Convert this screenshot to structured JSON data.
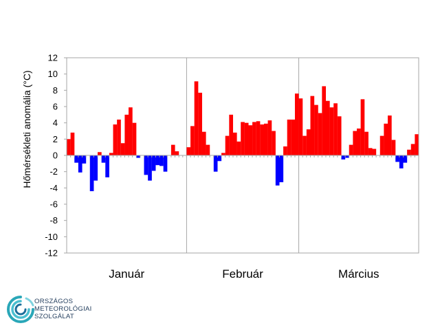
{
  "chart_data": {
    "type": "bar",
    "ylabel": "Hőmérsékleti anomália (°C)",
    "ylim": [
      -12,
      12
    ],
    "yticks": [
      "12",
      "10",
      "8",
      "6",
      "4",
      "2",
      "0",
      "-2",
      "-4",
      "-6",
      "-8",
      "-10",
      "-12"
    ],
    "months": [
      "Január",
      "Február",
      "Március"
    ],
    "month_days": [
      31,
      29,
      31
    ],
    "colors": {
      "positive": "#ff0000",
      "negative": "#0000ff"
    },
    "values": [
      2.0,
      2.8,
      -0.9,
      -2.1,
      -1.0,
      0.0,
      -4.4,
      -3.1,
      0.4,
      -0.9,
      -2.7,
      0.3,
      3.8,
      4.4,
      1.5,
      5.0,
      5.9,
      4.0,
      -0.3,
      0.0,
      -2.4,
      -3.1,
      -1.9,
      -1.2,
      -1.3,
      -2.0,
      0.0,
      1.3,
      0.5,
      0.0,
      0.0,
      1.0,
      3.6,
      9.1,
      7.7,
      2.9,
      1.3,
      0.0,
      -2.0,
      -0.7,
      0.3,
      2.4,
      5.0,
      2.8,
      1.7,
      4.1,
      4.0,
      3.7,
      4.1,
      4.2,
      3.8,
      3.9,
      4.3,
      3.0,
      -3.7,
      -3.3,
      1.1,
      4.4,
      4.4,
      7.6,
      7.0,
      2.4,
      3.2,
      7.3,
      6.2,
      5.2,
      8.5,
      6.7,
      5.9,
      6.4,
      4.8,
      -0.5,
      -0.3,
      1.3,
      3.0,
      3.3,
      6.9,
      2.9,
      0.9,
      0.8,
      0.0,
      2.4,
      3.9,
      4.9,
      1.9,
      -0.8,
      -1.6,
      -0.9,
      0.7,
      1.4,
      2.6
    ]
  },
  "logo": {
    "lines": [
      "ORSZÁGOS",
      "METEOROLÓGIAI",
      "SZOLGÁLAT"
    ]
  }
}
